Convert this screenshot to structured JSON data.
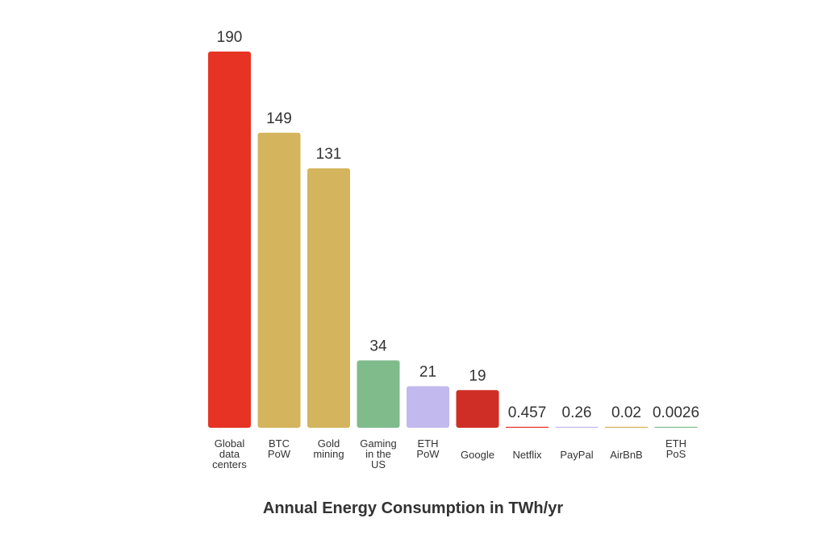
{
  "chart_data": {
    "type": "bar",
    "title": "Annual Energy Consumption in TWh/yr",
    "xlabel": "",
    "ylabel": "",
    "ylim": [
      0,
      190
    ],
    "grid": false,
    "legend": "none",
    "categories": [
      [
        "Global",
        "data",
        "centers"
      ],
      [
        "BTC",
        "PoW"
      ],
      [
        "Gold",
        "mining"
      ],
      [
        "Gaming",
        "in the",
        "US"
      ],
      [
        "ETH",
        "PoW"
      ],
      [
        "Google"
      ],
      [
        "Netflix"
      ],
      [
        "PayPal"
      ],
      [
        "AirBnB"
      ],
      [
        "ETH",
        "PoS"
      ]
    ],
    "values": [
      190,
      149,
      131,
      34,
      21,
      19,
      0.457,
      0.26,
      0.02,
      0.0026
    ],
    "value_labels": [
      "190",
      "149",
      "131",
      "34",
      "21",
      "19",
      "0.457",
      "0.26",
      "0.02",
      "0.0026"
    ],
    "colors": [
      "#e63323",
      "#d4b45c",
      "#d4b45c",
      "#7fbb8b",
      "#c2b9ef",
      "#cf2e27",
      "#e63323",
      "#c2b9ef",
      "#d4b45c",
      "#7fbb8b"
    ]
  }
}
